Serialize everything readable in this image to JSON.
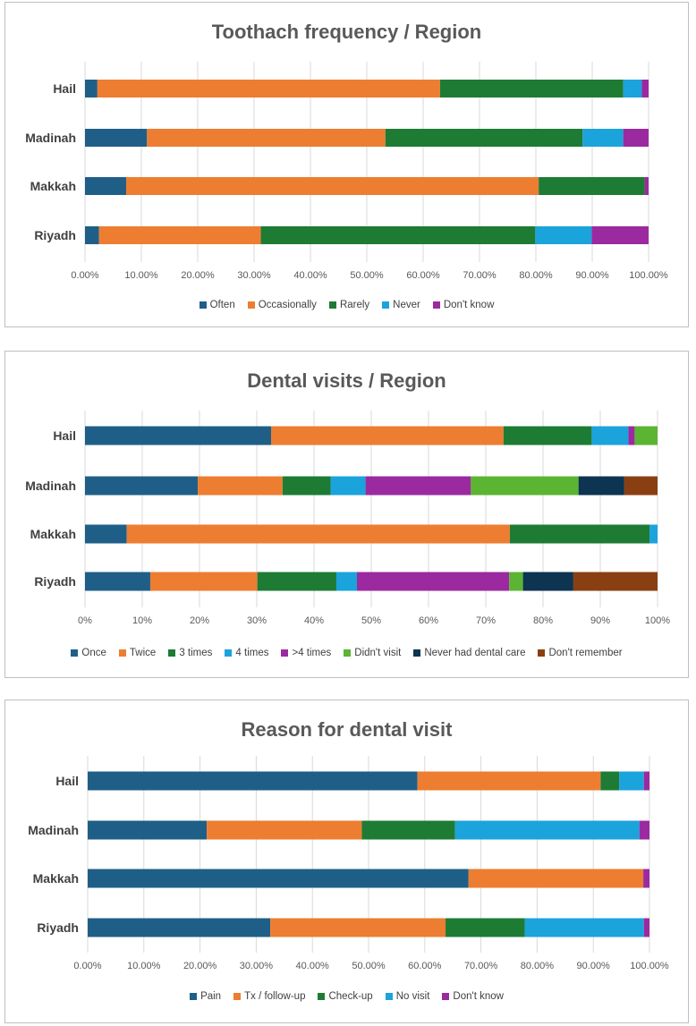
{
  "chart_data": [
    {
      "type": "bar",
      "orientation": "horizontal",
      "stacked": true,
      "title": "Toothach frequency / Region",
      "categories": [
        "Hail",
        "Madinah",
        "Makkah",
        "Riyadh"
      ],
      "xlim": [
        0,
        100
      ],
      "tick_labels": [
        "0.00%",
        "10.00%",
        "20.00%",
        "30.00%",
        "40.00%",
        "50.00%",
        "60.00%",
        "70.00%",
        "80.00%",
        "90.00%",
        "100.00%"
      ],
      "grid": true,
      "legend_position": "bottom",
      "series": [
        {
          "name": "Often",
          "color": "#1f5f87",
          "values": [
            2.2,
            11.0,
            7.3,
            2.5
          ]
        },
        {
          "name": "Occasionally",
          "color": "#ed7d31",
          "values": [
            60.8,
            42.3,
            73.2,
            28.7
          ]
        },
        {
          "name": "Rarely",
          "color": "#1e7b34",
          "values": [
            32.5,
            35.0,
            18.8,
            48.7
          ]
        },
        {
          "name": "Never",
          "color": "#1ba3dc",
          "values": [
            3.3,
            7.2,
            0.0,
            10.0
          ]
        },
        {
          "name": "Don't know",
          "color": "#9b2aa0",
          "values": [
            1.2,
            4.5,
            0.7,
            10.1
          ]
        }
      ]
    },
    {
      "type": "bar",
      "orientation": "horizontal",
      "stacked": true,
      "title": "Dental visits / Region",
      "categories": [
        "Hail",
        "Madinah",
        "Makkah",
        "Riyadh"
      ],
      "xlim": [
        0,
        100
      ],
      "tick_labels": [
        "0%",
        "10%",
        "20%",
        "30%",
        "40%",
        "50%",
        "60%",
        "70%",
        "80%",
        "90%",
        "100%"
      ],
      "grid": true,
      "legend_position": "bottom",
      "series": [
        {
          "name": "Once",
          "color": "#1f5f87",
          "values": [
            32.5,
            19.7,
            7.3,
            11.4
          ]
        },
        {
          "name": "Twice",
          "color": "#ed7d31",
          "values": [
            40.6,
            14.8,
            66.9,
            18.7
          ]
        },
        {
          "name": "3 times",
          "color": "#1e7b34",
          "values": [
            15.4,
            8.4,
            24.4,
            13.8
          ]
        },
        {
          "name": "4 times",
          "color": "#1ba3dc",
          "values": [
            6.4,
            6.1,
            1.4,
            3.6
          ]
        },
        {
          "name": ">4 times",
          "color": "#9b2aa0",
          "values": [
            1.1,
            18.4,
            0.0,
            26.6
          ]
        },
        {
          "name": "Didn't visit",
          "color": "#5bb432",
          "values": [
            4.0,
            18.8,
            0.0,
            2.4
          ]
        },
        {
          "name": "Never had dental care",
          "color": "#0d3450",
          "values": [
            0.0,
            8.0,
            0.0,
            8.8
          ]
        },
        {
          "name": "Don't remember",
          "color": "#8a3f12",
          "values": [
            0.0,
            5.8,
            0.0,
            14.7
          ]
        }
      ]
    },
    {
      "type": "bar",
      "orientation": "horizontal",
      "stacked": true,
      "title": "Reason for dental visit",
      "categories": [
        "Hail",
        "Madinah",
        "Makkah",
        "Riyadh"
      ],
      "xlim": [
        0,
        100
      ],
      "tick_labels": [
        "0.00%",
        "10.00%",
        "20.00%",
        "30.00%",
        "40.00%",
        "50.00%",
        "60.00%",
        "70.00%",
        "80.00%",
        "90.00%",
        "100.00%"
      ],
      "grid": true,
      "legend_position": "bottom",
      "series": [
        {
          "name": "Pain",
          "color": "#1f5f87",
          "values": [
            58.7,
            21.2,
            67.8,
            32.5
          ]
        },
        {
          "name": "Tx / follow-up",
          "color": "#ed7d31",
          "values": [
            32.6,
            27.6,
            31.1,
            31.2
          ]
        },
        {
          "name": "Check-up",
          "color": "#1e7b34",
          "values": [
            3.3,
            16.6,
            0.0,
            14.1
          ]
        },
        {
          "name": "No visit",
          "color": "#1ba3dc",
          "values": [
            4.4,
            32.8,
            0.0,
            21.2
          ]
        },
        {
          "name": "Don't know",
          "color": "#9b2aa0",
          "values": [
            1.0,
            1.8,
            1.1,
            1.0
          ]
        }
      ]
    }
  ]
}
